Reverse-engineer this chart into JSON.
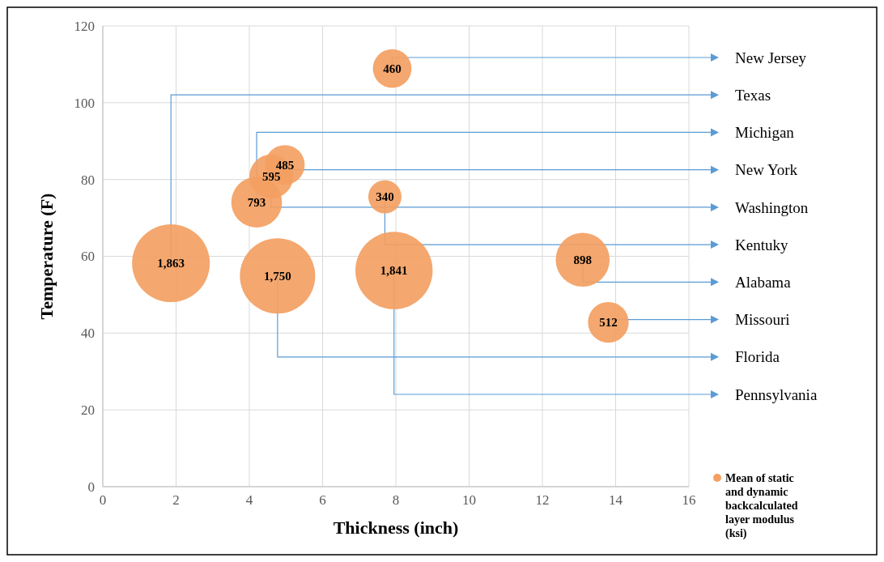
{
  "chart_data": {
    "type": "bubble",
    "xlabel": "Thickness (inch)",
    "ylabel": "Temperature (F)",
    "xlim": [
      0,
      16
    ],
    "xticks": [
      0,
      2,
      4,
      6,
      8,
      10,
      12,
      14,
      16
    ],
    "ylim": [
      0,
      120
    ],
    "yticks": [
      0,
      20,
      40,
      60,
      80,
      100,
      120
    ],
    "grid": true,
    "legend": "bottom right",
    "series": [
      {
        "name": "Mean of static and dynamic backcalculated layer modulus (ksi)",
        "color": "#f3a062",
        "x": [
          7.9,
          1.86,
          4.2,
          4.97,
          4.6,
          7.7,
          13.1,
          13.8,
          4.77,
          7.95
        ],
        "values": [
          108.9,
          58.2,
          74.1,
          83.8,
          80.8,
          75.5,
          59.1,
          42.8,
          54.9,
          56.3
        ],
        "sizes": [
          460,
          1863,
          793,
          485,
          595,
          340,
          898,
          512,
          1750,
          1841
        ],
        "value_labels": [
          "460",
          "1,863",
          "793",
          "485",
          "595",
          "340",
          "898",
          "512",
          "1,750",
          "1,841"
        ]
      }
    ],
    "annotations": [
      "New Jersey",
      "Texas",
      "Michigan",
      "New York",
      "Washington",
      "Kentuky",
      "Alabama",
      "Missouri",
      "Florida",
      "Pennsylvania"
    ]
  }
}
